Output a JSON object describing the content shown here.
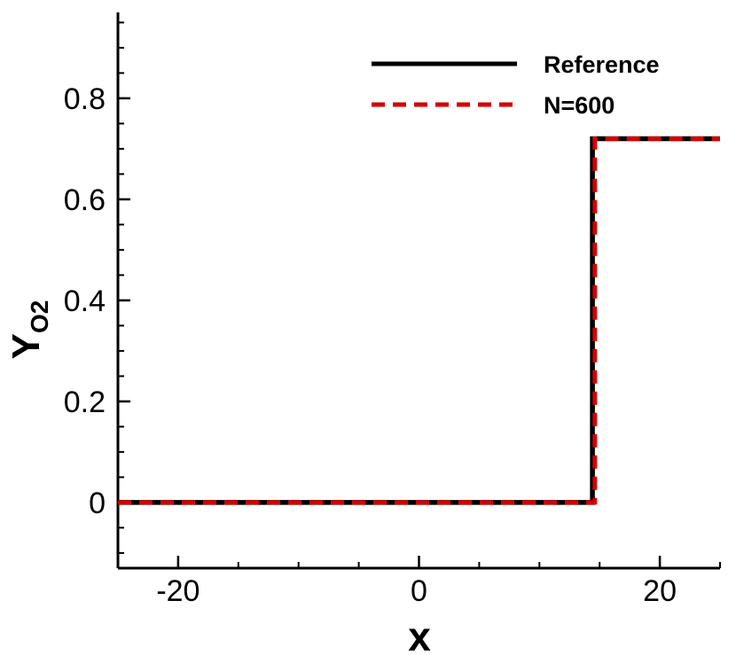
{
  "chart_data": {
    "type": "line",
    "xlabel": "x",
    "ylabel": "Y",
    "ylabel_subscript": "O2",
    "xlim": [
      -25,
      25
    ],
    "ylim": [
      -0.13,
      0.97
    ],
    "x_ticks": [
      {
        "value": -20,
        "label": "-20"
      },
      {
        "value": 0,
        "label": "0"
      },
      {
        "value": 20,
        "label": "20"
      }
    ],
    "y_ticks": [
      {
        "value": 0,
        "label": "0"
      },
      {
        "value": 0.2,
        "label": "0.2"
      },
      {
        "value": 0.4,
        "label": "0.4"
      },
      {
        "value": 0.6,
        "label": "0.6"
      },
      {
        "value": 0.8,
        "label": "0.8"
      }
    ],
    "x_minor_step": 5,
    "y_minor_step": 0.05,
    "grid": false,
    "legend_position": "top-right",
    "series": [
      {
        "name": "Reference",
        "color": "#000000",
        "style": "solid",
        "x": [
          -25,
          14.4,
          14.4,
          25
        ],
        "y": [
          0,
          0,
          0.72,
          0.72
        ]
      },
      {
        "name": "N=600",
        "color": "#d40000",
        "style": "dashed",
        "x": [
          -25,
          14.6,
          14.6,
          25
        ],
        "y": [
          0,
          0,
          0.72,
          0.72
        ]
      }
    ]
  }
}
